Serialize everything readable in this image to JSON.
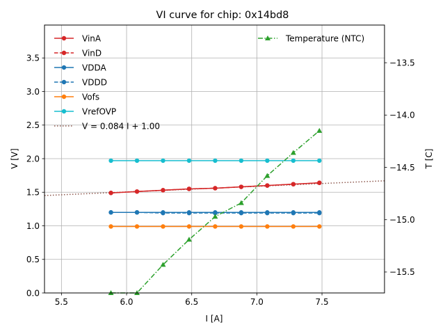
{
  "chart_data": {
    "type": "line",
    "title": "VI curve for chip: 0x14bd8",
    "xlabel": "I [A]",
    "ylabel": "V [V]",
    "y2label": "T [C]",
    "xlim": [
      5.37,
      7.98
    ],
    "ylim": [
      0.0,
      3.99
    ],
    "y2lim": [
      -15.7,
      -13.14
    ],
    "xticks": [
      5.5,
      6.0,
      6.5,
      7.0,
      7.5
    ],
    "xtick_labels": [
      "5.5",
      "6.0",
      "6.5",
      "7.0",
      "7.5"
    ],
    "yticks": [
      0.0,
      0.5,
      1.0,
      1.5,
      2.0,
      2.5,
      3.0,
      3.5
    ],
    "ytick_labels": [
      "0.0",
      "0.5",
      "1.0",
      "1.5",
      "2.0",
      "2.5",
      "3.0",
      "3.5"
    ],
    "y2ticks": [
      -15.5,
      -15.0,
      -14.5,
      -14.0,
      -13.5
    ],
    "y2tick_labels": [
      "−15.5",
      "−15.0",
      "−14.5",
      "−14.0",
      "−13.5"
    ],
    "grid": true,
    "legend_left_placement": "upper-left",
    "legend_right_placement": "upper-right",
    "x": [
      5.88,
      6.08,
      6.28,
      6.48,
      6.68,
      6.88,
      7.08,
      7.28,
      7.48
    ],
    "series": [
      {
        "name": "VinA",
        "axis": "left",
        "color": "#d62728",
        "dash": "solid",
        "marker": "circle",
        "values": [
          1.49,
          1.51,
          1.53,
          1.55,
          1.56,
          1.58,
          1.6,
          1.62,
          1.64
        ]
      },
      {
        "name": "VinD",
        "axis": "left",
        "color": "#d62728",
        "dash": "dashed",
        "marker": "circle",
        "values": [
          1.49,
          1.51,
          1.53,
          1.55,
          1.56,
          1.58,
          1.6,
          1.62,
          1.64
        ]
      },
      {
        "name": "VDDA",
        "axis": "left",
        "color": "#1f77b4",
        "dash": "solid",
        "marker": "circle",
        "values": [
          1.2,
          1.2,
          1.2,
          1.2,
          1.2,
          1.2,
          1.2,
          1.2,
          1.2
        ]
      },
      {
        "name": "VDDD",
        "axis": "left",
        "color": "#1f77b4",
        "dash": "dashed",
        "marker": "circle",
        "values": [
          1.2,
          1.2,
          1.19,
          1.19,
          1.19,
          1.19,
          1.19,
          1.19,
          1.19
        ]
      },
      {
        "name": "Vofs",
        "axis": "left",
        "color": "#ff7f0e",
        "dash": "solid",
        "marker": "circle",
        "values": [
          0.99,
          0.99,
          0.99,
          0.99,
          0.99,
          0.99,
          0.99,
          0.99,
          0.99
        ]
      },
      {
        "name": "VrefOVP",
        "axis": "left",
        "color": "#17becf",
        "dash": "solid",
        "marker": "circle",
        "values": [
          1.97,
          1.97,
          1.97,
          1.97,
          1.97,
          1.97,
          1.97,
          1.97,
          1.97
        ]
      },
      {
        "name": "Temperature (NTC)",
        "axis": "right",
        "color": "#2ca02c",
        "dash": "dashdot",
        "marker": "triangle",
        "values": [
          -15.7,
          -15.7,
          -15.43,
          -15.19,
          -14.97,
          -14.84,
          -14.58,
          -14.36,
          -14.15
        ]
      }
    ],
    "fit": {
      "label": "V = 0.084 I + 1.00",
      "slope": 0.084,
      "intercept": 1.0,
      "color": "#8c564b",
      "dash": "dotted"
    }
  }
}
